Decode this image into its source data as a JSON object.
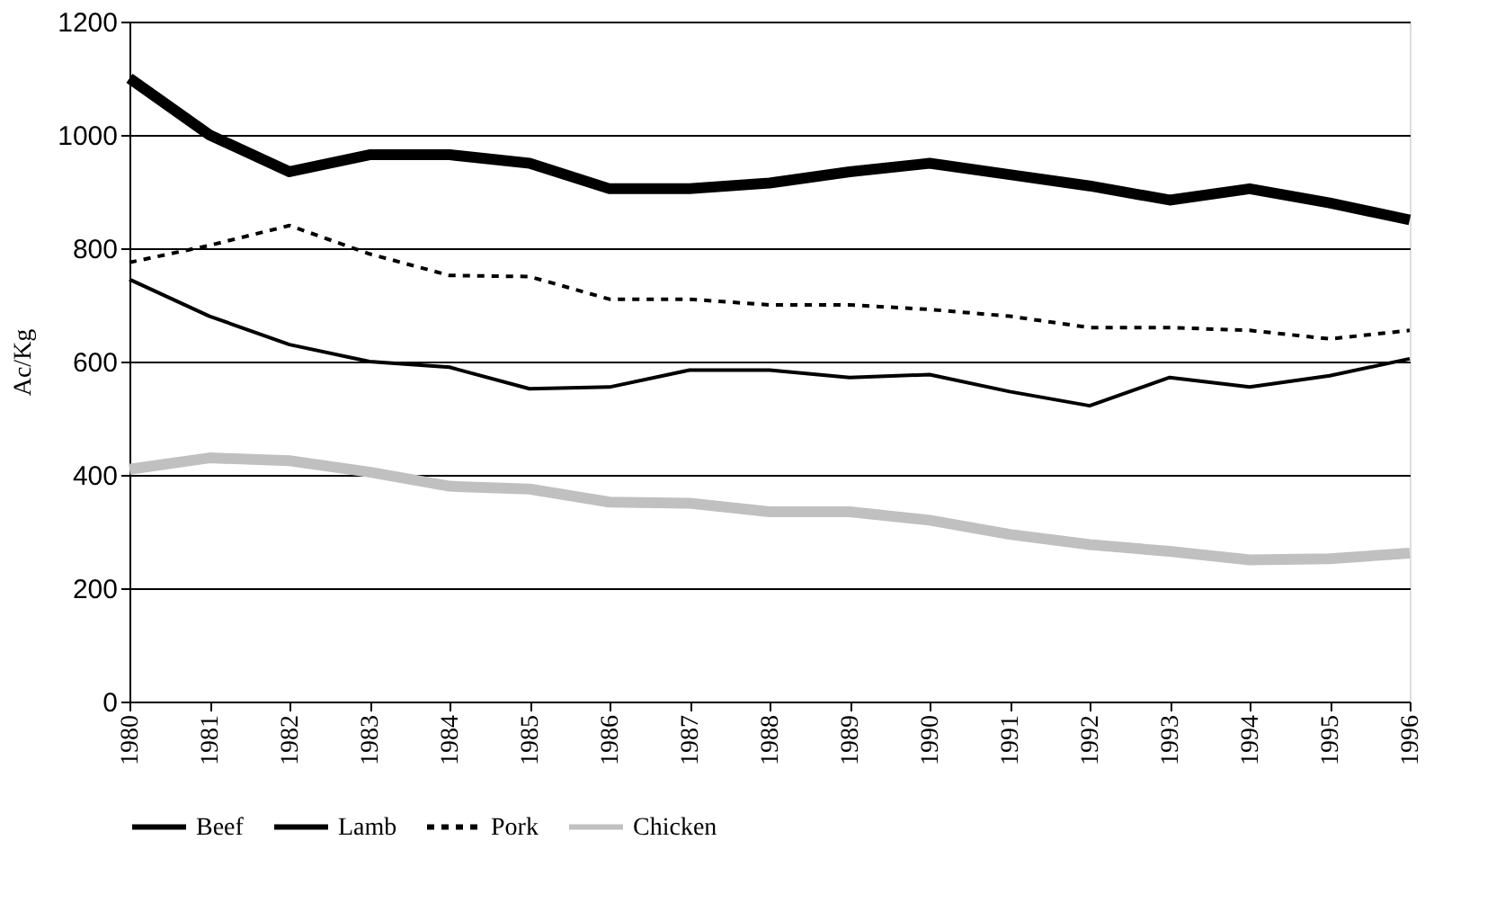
{
  "chart_data": {
    "type": "line",
    "ylabel": "Ac/Kg",
    "categories": [
      "1980",
      "1981",
      "1982",
      "1983",
      "1984",
      "1985",
      "1986",
      "1987",
      "1988",
      "1989",
      "1990",
      "1991",
      "1992",
      "1993",
      "1994",
      "1995",
      "1996"
    ],
    "ylim": [
      0,
      1200
    ],
    "yticks": [
      0,
      200,
      400,
      600,
      800,
      {
        "value": 1000,
        "label": "1000"
      },
      {
        "value": 1200,
        "label": "1200"
      }
    ],
    "grid": "y",
    "legend": "bottom",
    "marker": "none",
    "series": [
      {
        "name": "Beef",
        "color": "#000000",
        "line_style": "solid",
        "values": [
          1100,
          1000,
          935,
          965,
          965,
          950,
          905,
          905,
          915,
          935,
          950,
          930,
          910,
          885,
          905,
          880,
          850
        ]
      },
      {
        "name": "Lamb",
        "color": "#000000",
        "line_style": "solid",
        "values": [
          745,
          680,
          630,
          600,
          590,
          552,
          555,
          585,
          585,
          572,
          577,
          547,
          522,
          572,
          555,
          575,
          605
        ]
      },
      {
        "name": "Pork",
        "color": "#000000",
        "line_style": "dashed",
        "values": [
          775,
          805,
          840,
          790,
          752,
          750,
          710,
          710,
          700,
          700,
          692,
          680,
          660,
          660,
          655,
          640,
          655
        ]
      },
      {
        "name": "Chicken",
        "color": "#c0c0c0",
        "line_style": "solid",
        "values": [
          410,
          430,
          425,
          405,
          380,
          375,
          352,
          350,
          335,
          335,
          320,
          295,
          277,
          265,
          250,
          252,
          262
        ]
      }
    ]
  }
}
